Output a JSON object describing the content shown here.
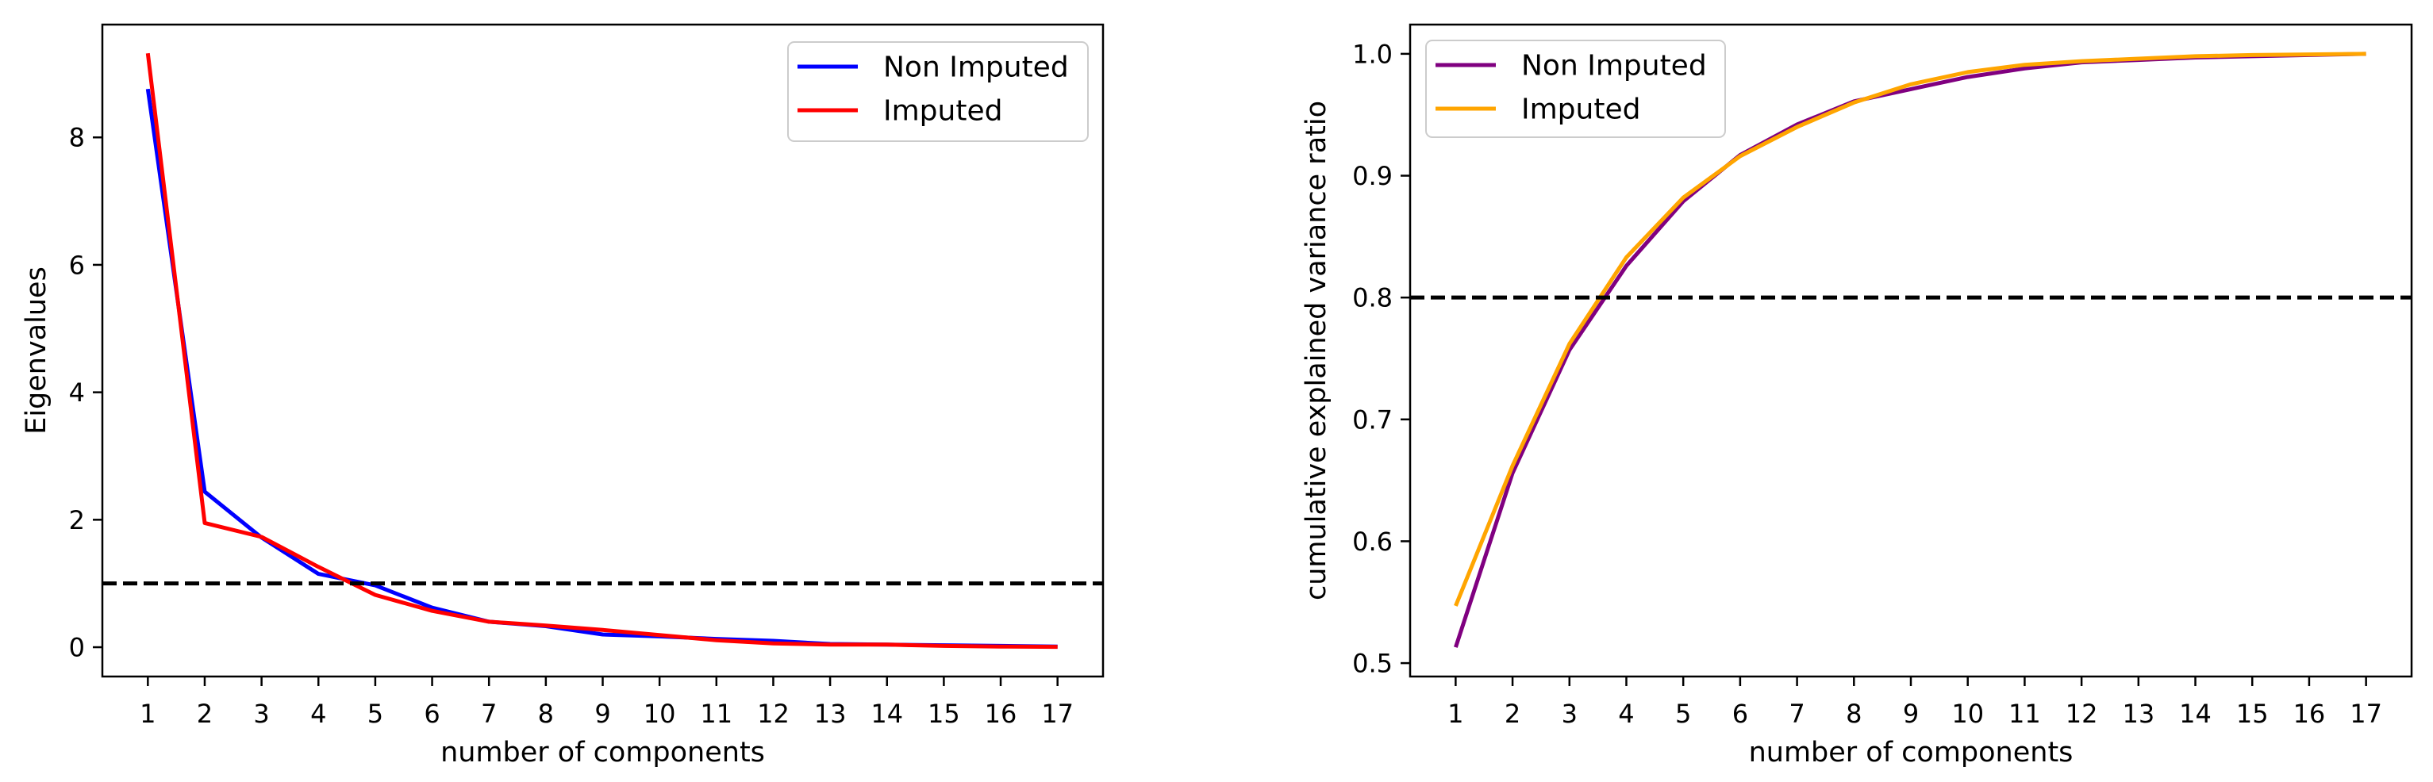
{
  "chart_data": [
    {
      "type": "line",
      "title": "",
      "xlabel": "number of components",
      "ylabel": "Eigenvalues",
      "x": [
        1,
        2,
        3,
        4,
        5,
        6,
        7,
        8,
        9,
        10,
        11,
        12,
        13,
        14,
        15,
        16,
        17
      ],
      "x_tick_labels": [
        "1",
        "2",
        "3",
        "4",
        "5",
        "6",
        "7",
        "8",
        "9",
        "10",
        "11",
        "12",
        "13",
        "14",
        "15",
        "16",
        "17"
      ],
      "y_ticks": [
        0,
        2,
        4,
        6,
        8
      ],
      "y_tick_labels": [
        "0",
        "2",
        "4",
        "6",
        "8"
      ],
      "xlim": [
        0.2,
        17.8
      ],
      "ylim": [
        -0.46,
        9.77
      ],
      "grid": false,
      "legend_position": "top-right",
      "series": [
        {
          "name": "Non Imputed",
          "color": "#0000ff",
          "values": [
            8.76,
            2.44,
            1.72,
            1.15,
            0.97,
            0.62,
            0.4,
            0.33,
            0.2,
            0.17,
            0.13,
            0.1,
            0.05,
            0.04,
            0.03,
            0.02,
            0.01
          ]
        },
        {
          "name": "Imputed",
          "color": "#ff0000",
          "values": [
            9.32,
            1.95,
            1.73,
            1.26,
            0.82,
            0.57,
            0.4,
            0.34,
            0.27,
            0.19,
            0.11,
            0.06,
            0.04,
            0.04,
            0.02,
            0.01,
            0.005
          ]
        }
      ],
      "reference_line": {
        "y": 1,
        "color": "#000000",
        "style": "dashed"
      }
    },
    {
      "type": "line",
      "title": "",
      "xlabel": "number of components",
      "ylabel": "cumulative explained variance ratio",
      "x": [
        1,
        2,
        3,
        4,
        5,
        6,
        7,
        8,
        9,
        10,
        11,
        12,
        13,
        14,
        15,
        16,
        17
      ],
      "x_tick_labels": [
        "1",
        "2",
        "3",
        "4",
        "5",
        "6",
        "7",
        "8",
        "9",
        "10",
        "11",
        "12",
        "13",
        "14",
        "15",
        "16",
        "17"
      ],
      "y_ticks": [
        0.5,
        0.6,
        0.7,
        0.8,
        0.9,
        1.0
      ],
      "y_tick_labels": [
        "0.5",
        "0.6",
        "0.7",
        "0.8",
        "0.9",
        "1.0"
      ],
      "xlim": [
        0.2,
        17.8
      ],
      "ylim": [
        0.489,
        1.024
      ],
      "grid": false,
      "legend_position": "top-left",
      "series": [
        {
          "name": "Non Imputed",
          "color": "#800080",
          "values": [
            0.513,
            0.656,
            0.757,
            0.826,
            0.879,
            0.917,
            0.942,
            0.961,
            0.971,
            0.981,
            0.988,
            0.993,
            0.995,
            0.997,
            0.998,
            0.999,
            1.0
          ]
        },
        {
          "name": "Imputed",
          "color": "#ffa500",
          "values": [
            0.547,
            0.662,
            0.762,
            0.833,
            0.882,
            0.916,
            0.94,
            0.96,
            0.975,
            0.985,
            0.991,
            0.994,
            0.996,
            0.998,
            0.999,
            0.9995,
            1.0
          ]
        }
      ],
      "reference_line": {
        "y": 0.8,
        "color": "#000000",
        "style": "dashed"
      }
    }
  ]
}
